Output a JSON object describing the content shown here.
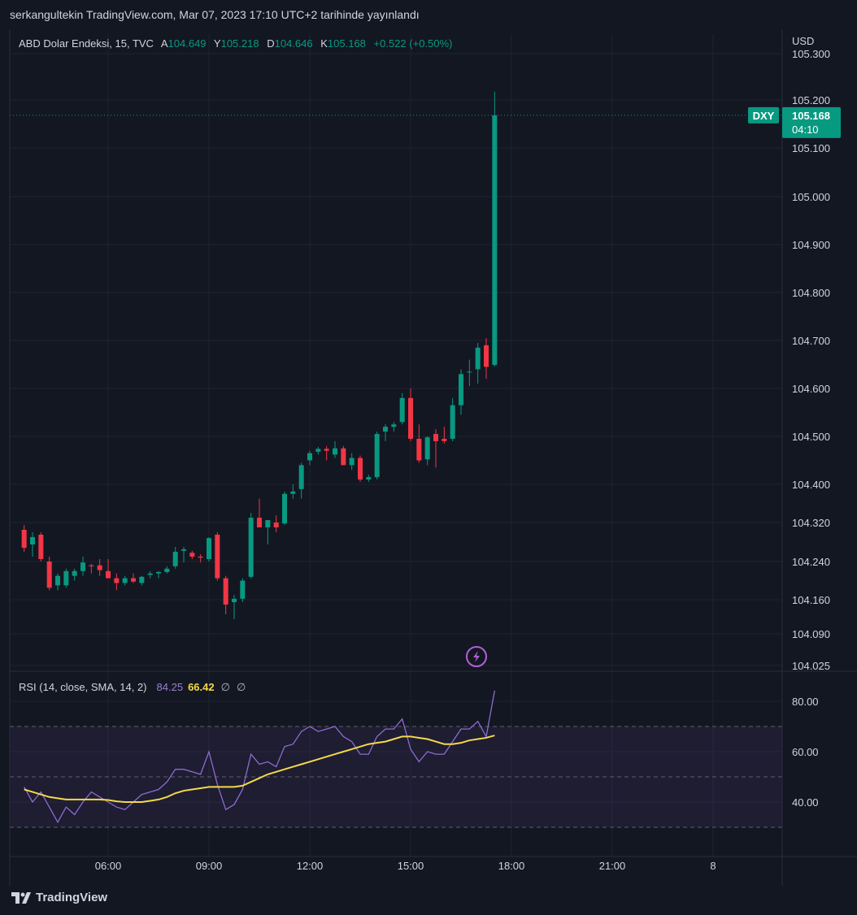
{
  "header": {
    "text": "serkangultekin TradingView.com, Mar 07, 2023 17:10 UTC+2 tarihinde yayınlandı"
  },
  "legend": {
    "symbol": "ABD Dolar Endeksi, 15, TVC",
    "o_label": "A",
    "o_value": "104.649",
    "h_label": "Y",
    "h_value": "105.218",
    "l_label": "D",
    "l_value": "104.646",
    "c_label": "K",
    "c_value": "105.168",
    "change": "+0.522 (+0.50%)"
  },
  "currency": "USD",
  "price_tag": {
    "symbol": "DXY",
    "price": "105.168",
    "countdown": "04:10"
  },
  "rsi_legend": {
    "name": "RSI (14, close, SMA, 14, 2)",
    "rsi_value": "84.25",
    "sma_value": "66.42",
    "na1": "∅",
    "na2": "∅"
  },
  "footer": {
    "brand": "TradingView"
  },
  "colors": {
    "up": "#089981",
    "down": "#f23645",
    "rsi": "#7e57c2",
    "rsi_sma": "#f5d94a",
    "background": "#131722"
  },
  "icons": {
    "alert": "lightning-icon",
    "logo": "tradingview-logo-icon"
  },
  "chart_data": [
    {
      "type": "candlestick",
      "title": "ABD Dolar Endeksi, 15, TVC",
      "price_ticks": [
        "105.300",
        "105.200",
        "105.100",
        "105.000",
        "104.900",
        "104.800",
        "104.700",
        "104.600",
        "104.500",
        "104.400",
        "104.320",
        "104.240",
        "104.160",
        "104.090",
        "104.025"
      ],
      "time_ticks": [
        {
          "label": "06:00",
          "t": "06:00"
        },
        {
          "label": "09:00",
          "t": "09:00"
        },
        {
          "label": "12:00",
          "t": "12:00"
        },
        {
          "label": "15:00",
          "t": "15:00"
        },
        {
          "label": "18:00",
          "t": "18:00"
        },
        {
          "label": "21:00",
          "t": "21:00"
        },
        {
          "label": "8",
          "t": "24:00"
        }
      ],
      "bar_interval_minutes": 15,
      "last_price": 105.168,
      "candles": [
        {
          "t": "03:30",
          "o": 104.305,
          "h": 104.315,
          "l": 104.26,
          "c": 104.268
        },
        {
          "t": "03:45",
          "o": 104.275,
          "h": 104.3,
          "l": 104.25,
          "c": 104.29
        },
        {
          "t": "04:00",
          "o": 104.295,
          "h": 104.3,
          "l": 104.24,
          "c": 104.245
        },
        {
          "t": "04:15",
          "o": 104.24,
          "h": 104.25,
          "l": 104.18,
          "c": 104.185
        },
        {
          "t": "04:30",
          "o": 104.19,
          "h": 104.215,
          "l": 104.18,
          "c": 104.21
        },
        {
          "t": "04:45",
          "o": 104.19,
          "h": 104.225,
          "l": 104.185,
          "c": 104.22
        },
        {
          "t": "05:00",
          "o": 104.21,
          "h": 104.225,
          "l": 104.2,
          "c": 104.22
        },
        {
          "t": "05:15",
          "o": 104.22,
          "h": 104.25,
          "l": 104.21,
          "c": 104.238
        },
        {
          "t": "05:30",
          "o": 104.232,
          "h": 104.235,
          "l": 104.215,
          "c": 104.23
        },
        {
          "t": "05:45",
          "o": 104.232,
          "h": 104.245,
          "l": 104.21,
          "c": 104.222
        },
        {
          "t": "06:00",
          "o": 104.22,
          "h": 104.245,
          "l": 104.205,
          "c": 104.205
        },
        {
          "t": "06:15",
          "o": 104.205,
          "h": 104.215,
          "l": 104.18,
          "c": 104.195
        },
        {
          "t": "06:30",
          "o": 104.195,
          "h": 104.21,
          "l": 104.19,
          "c": 104.205
        },
        {
          "t": "06:45",
          "o": 104.205,
          "h": 104.215,
          "l": 104.195,
          "c": 104.198
        },
        {
          "t": "07:00",
          "o": 104.195,
          "h": 104.21,
          "l": 104.19,
          "c": 104.208
        },
        {
          "t": "07:15",
          "o": 104.212,
          "h": 104.22,
          "l": 104.205,
          "c": 104.215
        },
        {
          "t": "07:30",
          "o": 104.215,
          "h": 104.22,
          "l": 104.205,
          "c": 104.218
        },
        {
          "t": "07:45",
          "o": 104.218,
          "h": 104.23,
          "l": 104.215,
          "c": 104.225
        },
        {
          "t": "08:00",
          "o": 104.23,
          "h": 104.27,
          "l": 104.225,
          "c": 104.26
        },
        {
          "t": "08:15",
          "o": 104.262,
          "h": 104.27,
          "l": 104.238,
          "c": 104.265
        },
        {
          "t": "08:30",
          "o": 104.258,
          "h": 104.262,
          "l": 104.245,
          "c": 104.25
        },
        {
          "t": "08:45",
          "o": 104.25,
          "h": 104.255,
          "l": 104.238,
          "c": 104.248
        },
        {
          "t": "09:00",
          "o": 104.245,
          "h": 104.29,
          "l": 104.24,
          "c": 104.288
        },
        {
          "t": "09:15",
          "o": 104.295,
          "h": 104.3,
          "l": 104.2,
          "c": 104.205
        },
        {
          "t": "09:30",
          "o": 104.205,
          "h": 104.21,
          "l": 104.13,
          "c": 104.15
        },
        {
          "t": "09:45",
          "o": 104.155,
          "h": 104.17,
          "l": 104.12,
          "c": 104.162
        },
        {
          "t": "10:00",
          "o": 104.162,
          "h": 104.205,
          "l": 104.155,
          "c": 104.2
        },
        {
          "t": "10:15",
          "o": 104.208,
          "h": 104.34,
          "l": 104.205,
          "c": 104.33
        },
        {
          "t": "10:30",
          "o": 104.33,
          "h": 104.37,
          "l": 104.31,
          "c": 104.31
        },
        {
          "t": "10:45",
          "o": 104.31,
          "h": 104.325,
          "l": 104.275,
          "c": 104.325
        },
        {
          "t": "11:00",
          "o": 104.32,
          "h": 104.335,
          "l": 104.3,
          "c": 104.31
        },
        {
          "t": "11:15",
          "o": 104.318,
          "h": 104.385,
          "l": 104.315,
          "c": 104.38
        },
        {
          "t": "11:30",
          "o": 104.38,
          "h": 104.4,
          "l": 104.37,
          "c": 104.385
        },
        {
          "t": "11:45",
          "o": 104.39,
          "h": 104.445,
          "l": 104.37,
          "c": 104.44
        },
        {
          "t": "12:00",
          "o": 104.45,
          "h": 104.47,
          "l": 104.44,
          "c": 104.465
        },
        {
          "t": "12:15",
          "o": 104.468,
          "h": 104.478,
          "l": 104.462,
          "c": 104.474
        },
        {
          "t": "12:30",
          "o": 104.474,
          "h": 104.48,
          "l": 104.45,
          "c": 104.47
        },
        {
          "t": "12:45",
          "o": 104.462,
          "h": 104.49,
          "l": 104.455,
          "c": 104.475
        },
        {
          "t": "13:00",
          "o": 104.475,
          "h": 104.48,
          "l": 104.44,
          "c": 104.44
        },
        {
          "t": "13:15",
          "o": 104.44,
          "h": 104.465,
          "l": 104.43,
          "c": 104.455
        },
        {
          "t": "13:30",
          "o": 104.455,
          "h": 104.46,
          "l": 104.405,
          "c": 104.41
        },
        {
          "t": "13:45",
          "o": 104.41,
          "h": 104.42,
          "l": 104.405,
          "c": 104.415
        },
        {
          "t": "14:00",
          "o": 104.415,
          "h": 104.51,
          "l": 104.41,
          "c": 104.505
        },
        {
          "t": "14:15",
          "o": 104.51,
          "h": 104.525,
          "l": 104.49,
          "c": 104.52
        },
        {
          "t": "14:30",
          "o": 104.52,
          "h": 104.53,
          "l": 104.51,
          "c": 104.525
        },
        {
          "t": "14:45",
          "o": 104.53,
          "h": 104.59,
          "l": 104.525,
          "c": 104.58
        },
        {
          "t": "15:00",
          "o": 104.58,
          "h": 104.6,
          "l": 104.49,
          "c": 104.495
        },
        {
          "t": "15:15",
          "o": 104.495,
          "h": 104.525,
          "l": 104.445,
          "c": 104.45
        },
        {
          "t": "15:30",
          "o": 104.452,
          "h": 104.5,
          "l": 104.44,
          "c": 104.498
        },
        {
          "t": "15:45",
          "o": 104.505,
          "h": 104.515,
          "l": 104.435,
          "c": 104.49
        },
        {
          "t": "16:00",
          "o": 104.495,
          "h": 104.52,
          "l": 104.485,
          "c": 104.49
        },
        {
          "t": "16:15",
          "o": 104.495,
          "h": 104.58,
          "l": 104.49,
          "c": 104.565
        },
        {
          "t": "16:30",
          "o": 104.565,
          "h": 104.64,
          "l": 104.545,
          "c": 104.63
        },
        {
          "t": "16:45",
          "o": 104.635,
          "h": 104.66,
          "l": 104.605,
          "c": 104.635
        },
        {
          "t": "17:00",
          "o": 104.64,
          "h": 104.695,
          "l": 104.61,
          "c": 104.685
        },
        {
          "t": "17:15",
          "o": 104.69,
          "h": 104.705,
          "l": 104.62,
          "c": 104.645
        },
        {
          "t": "17:30",
          "o": 104.649,
          "h": 105.218,
          "l": 104.646,
          "c": 105.168
        }
      ]
    },
    {
      "type": "line",
      "title": "RSI (14, close, SMA, 14, 2)",
      "y_ticks": [
        "80.00",
        "60.00",
        "40.00"
      ],
      "bands": {
        "upper": 70,
        "middle": 50,
        "lower": 30
      },
      "series": [
        {
          "name": "RSI",
          "values": [
            46,
            40,
            44,
            38,
            32,
            38,
            35,
            40,
            44,
            42,
            40,
            38,
            37,
            40,
            43,
            44,
            45,
            48,
            53,
            53,
            52,
            51,
            60,
            47,
            37,
            39,
            45,
            59,
            55,
            56,
            54,
            62,
            63,
            68,
            70,
            68,
            69,
            70,
            66,
            64,
            59,
            59,
            66,
            69,
            69,
            73,
            61,
            56,
            60,
            59,
            59,
            64,
            69,
            69,
            72,
            66,
            84.25
          ]
        },
        {
          "name": "SMA",
          "values": [
            45,
            44,
            43,
            42,
            41.5,
            41,
            41,
            41,
            41,
            41,
            40.8,
            40.3,
            40,
            40,
            40,
            40.5,
            41,
            42,
            43.5,
            44.5,
            45,
            45.5,
            46,
            46,
            46,
            46,
            46.5,
            48,
            49.5,
            51,
            52,
            53,
            54,
            55,
            56,
            57,
            58,
            59,
            60,
            61,
            62,
            63,
            63.5,
            64,
            65,
            66,
            66,
            65.5,
            65,
            64,
            63,
            63,
            63.5,
            64.5,
            65,
            65.5,
            66.42
          ]
        }
      ]
    }
  ]
}
